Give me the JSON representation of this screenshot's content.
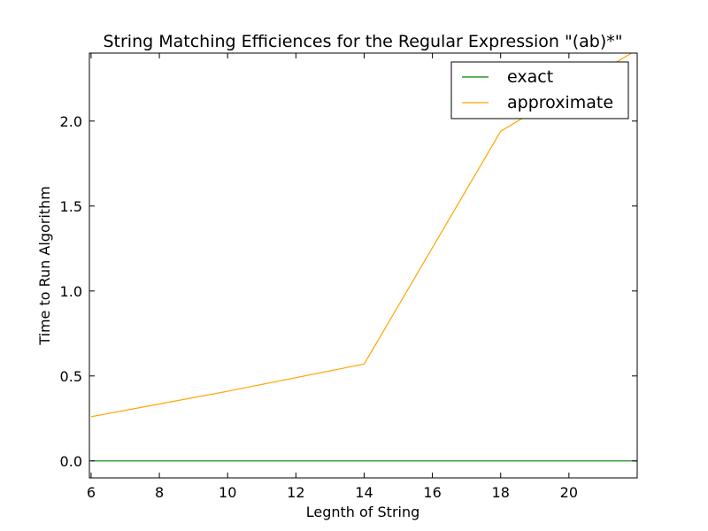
{
  "chart_data": {
    "type": "line",
    "title": "String Matching Efficiences for the Regular Expression \"(ab)*\"",
    "xlabel": "Legnth of String",
    "ylabel": "Time to Run Algorithm",
    "xlim": [
      5.95,
      22
    ],
    "ylim": [
      -0.1,
      2.4
    ],
    "xticks": [
      6,
      8,
      10,
      12,
      14,
      16,
      18,
      20
    ],
    "yticks": [
      0.0,
      0.5,
      1.0,
      1.5,
      2.0
    ],
    "ytick_labels": [
      "0.0",
      "0.5",
      "1.0",
      "1.5",
      "2.0"
    ],
    "grid": false,
    "legend_position": "top-right",
    "series": [
      {
        "name": "exact",
        "color": "#008000",
        "x": [
          6,
          10,
          14,
          18,
          22
        ],
        "y": [
          0.0,
          0.0,
          0.0,
          0.0,
          0.0
        ]
      },
      {
        "name": "approximate",
        "color": "#FFA500",
        "x": [
          6,
          10,
          14,
          18,
          22
        ],
        "y": [
          0.26,
          0.41,
          0.57,
          1.94,
          2.42
        ]
      }
    ]
  }
}
